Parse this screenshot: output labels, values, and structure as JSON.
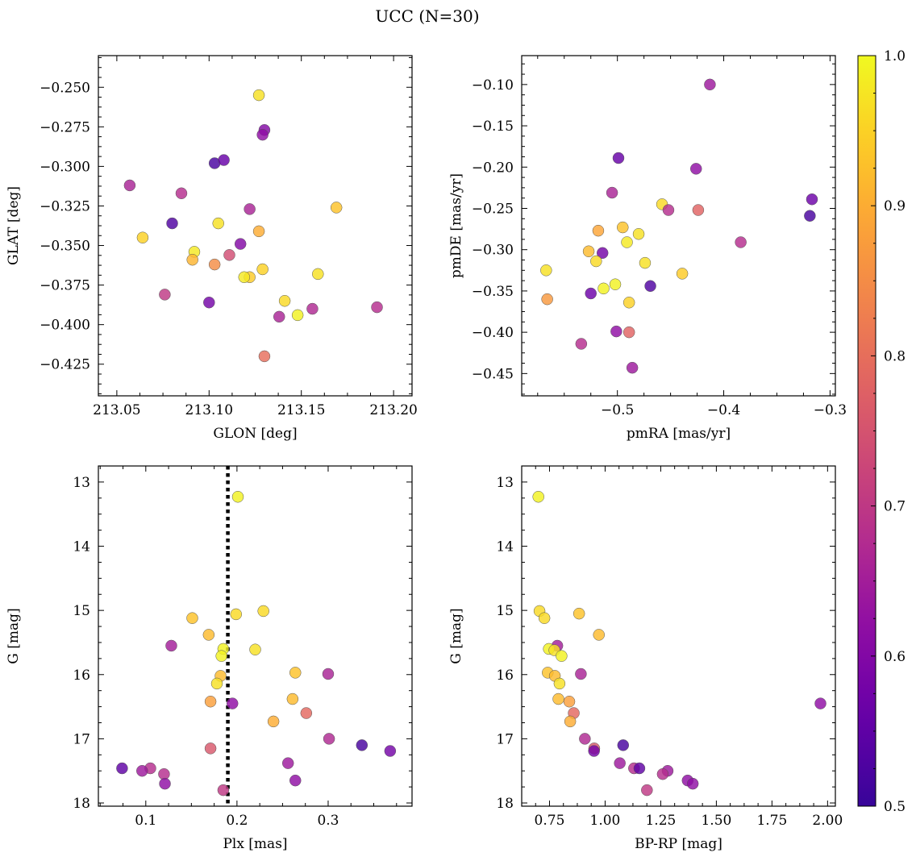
{
  "figure": {
    "title": "UCC (N=30)",
    "colorbar": {
      "colormap": "plasma",
      "range": [
        0.5,
        1.0
      ],
      "ticks": [
        0.5,
        0.6,
        0.7,
        0.8,
        0.9,
        1.0
      ],
      "tick_labels": [
        "0.5",
        "0.6",
        "0.7",
        "0.8",
        "0.9",
        "1.0"
      ]
    }
  },
  "chart_data": [
    {
      "type": "scatter",
      "panel": "top-left",
      "xlabel": "GLON [deg]",
      "ylabel": "GLAT [deg]",
      "xlim": [
        213.04,
        213.21
      ],
      "ylim": [
        -0.445,
        -0.23
      ],
      "y_inverted": false,
      "xticks": [
        213.05,
        213.1,
        213.15,
        213.2
      ],
      "xtick_labels": [
        "213.05",
        "213.10",
        "213.15",
        "213.20"
      ],
      "yticks": [
        -0.25,
        -0.275,
        -0.3,
        -0.325,
        -0.35,
        -0.375,
        -0.4,
        -0.425
      ],
      "ytick_labels": [
        "−0.250",
        "−0.275",
        "−0.300",
        "−0.325",
        "−0.350",
        "−0.375",
        "−0.400",
        "−0.425"
      ],
      "points": [
        {
          "x": 213.127,
          "y": -0.255,
          "c": 0.97
        },
        {
          "x": 213.13,
          "y": -0.277,
          "c": 0.6
        },
        {
          "x": 213.129,
          "y": -0.28,
          "c": 0.62
        },
        {
          "x": 213.103,
          "y": -0.298,
          "c": 0.52
        },
        {
          "x": 213.108,
          "y": -0.296,
          "c": 0.56
        },
        {
          "x": 213.057,
          "y": -0.312,
          "c": 0.66
        },
        {
          "x": 213.085,
          "y": -0.317,
          "c": 0.68
        },
        {
          "x": 213.08,
          "y": -0.336,
          "c": 0.53
        },
        {
          "x": 213.105,
          "y": -0.336,
          "c": 0.97
        },
        {
          "x": 213.122,
          "y": -0.327,
          "c": 0.66
        },
        {
          "x": 213.169,
          "y": -0.326,
          "c": 0.93
        },
        {
          "x": 213.064,
          "y": -0.345,
          "c": 0.95
        },
        {
          "x": 213.127,
          "y": -0.341,
          "c": 0.9
        },
        {
          "x": 213.117,
          "y": -0.349,
          "c": 0.6
        },
        {
          "x": 213.092,
          "y": -0.354,
          "c": 0.98
        },
        {
          "x": 213.091,
          "y": -0.359,
          "c": 0.91
        },
        {
          "x": 213.111,
          "y": -0.356,
          "c": 0.74
        },
        {
          "x": 213.103,
          "y": -0.362,
          "c": 0.85
        },
        {
          "x": 213.129,
          "y": -0.365,
          "c": 0.95
        },
        {
          "x": 213.122,
          "y": -0.37,
          "c": 0.94
        },
        {
          "x": 213.119,
          "y": -0.37,
          "c": 0.98
        },
        {
          "x": 213.159,
          "y": -0.368,
          "c": 0.97
        },
        {
          "x": 213.076,
          "y": -0.381,
          "c": 0.7
        },
        {
          "x": 213.1,
          "y": -0.386,
          "c": 0.58
        },
        {
          "x": 213.141,
          "y": -0.385,
          "c": 0.96
        },
        {
          "x": 213.156,
          "y": -0.39,
          "c": 0.67
        },
        {
          "x": 213.191,
          "y": -0.389,
          "c": 0.68
        },
        {
          "x": 213.138,
          "y": -0.395,
          "c": 0.66
        },
        {
          "x": 213.148,
          "y": -0.394,
          "c": 0.99
        },
        {
          "x": 213.13,
          "y": -0.42,
          "c": 0.8
        }
      ]
    },
    {
      "type": "scatter",
      "panel": "top-right",
      "xlabel": "pmRA [mas/yr]",
      "ylabel": "pmDE [mas/yr]",
      "xlim": [
        -0.59,
        -0.295
      ],
      "ylim": [
        -0.477,
        -0.065
      ],
      "y_inverted": false,
      "xticks": [
        -0.5,
        -0.4,
        -0.3
      ],
      "xtick_labels": [
        "−0.5",
        "−0.4",
        "−0.3"
      ],
      "yticks": [
        -0.1,
        -0.15,
        -0.2,
        -0.25,
        -0.3,
        -0.35,
        -0.4,
        -0.45
      ],
      "ytick_labels": [
        "−0.10",
        "−0.15",
        "−0.20",
        "−0.25",
        "−0.30",
        "−0.35",
        "−0.40",
        "−0.45"
      ],
      "points": [
        {
          "x": -0.413,
          "y": -0.1,
          "c": 0.64
        },
        {
          "x": -0.499,
          "y": -0.189,
          "c": 0.56
        },
        {
          "x": -0.426,
          "y": -0.202,
          "c": 0.62
        },
        {
          "x": -0.505,
          "y": -0.231,
          "c": 0.66
        },
        {
          "x": -0.317,
          "y": -0.239,
          "c": 0.57
        },
        {
          "x": -0.319,
          "y": -0.259,
          "c": 0.52
        },
        {
          "x": -0.458,
          "y": -0.245,
          "c": 0.96
        },
        {
          "x": -0.452,
          "y": -0.252,
          "c": 0.68
        },
        {
          "x": -0.424,
          "y": -0.252,
          "c": 0.78
        },
        {
          "x": -0.495,
          "y": -0.273,
          "c": 0.93
        },
        {
          "x": -0.518,
          "y": -0.277,
          "c": 0.89
        },
        {
          "x": -0.48,
          "y": -0.281,
          "c": 0.97
        },
        {
          "x": -0.491,
          "y": -0.291,
          "c": 0.98
        },
        {
          "x": -0.384,
          "y": -0.291,
          "c": 0.68
        },
        {
          "x": -0.527,
          "y": -0.302,
          "c": 0.92
        },
        {
          "x": -0.514,
          "y": -0.304,
          "c": 0.58
        },
        {
          "x": -0.52,
          "y": -0.314,
          "c": 0.96
        },
        {
          "x": -0.474,
          "y": -0.316,
          "c": 0.97
        },
        {
          "x": -0.567,
          "y": -0.325,
          "c": 0.97
        },
        {
          "x": -0.439,
          "y": -0.329,
          "c": 0.94
        },
        {
          "x": -0.502,
          "y": -0.342,
          "c": 0.99
        },
        {
          "x": -0.469,
          "y": -0.344,
          "c": 0.53
        },
        {
          "x": -0.513,
          "y": -0.347,
          "c": 0.99
        },
        {
          "x": -0.525,
          "y": -0.353,
          "c": 0.57
        },
        {
          "x": -0.566,
          "y": -0.36,
          "c": 0.87
        },
        {
          "x": -0.489,
          "y": -0.364,
          "c": 0.95
        },
        {
          "x": -0.501,
          "y": -0.399,
          "c": 0.62
        },
        {
          "x": -0.489,
          "y": -0.4,
          "c": 0.78
        },
        {
          "x": -0.534,
          "y": -0.414,
          "c": 0.68
        },
        {
          "x": -0.486,
          "y": -0.443,
          "c": 0.64
        }
      ]
    },
    {
      "type": "scatter",
      "panel": "bottom-left",
      "xlabel": "Plx [mas]",
      "ylabel": "G [mag]",
      "xlim": [
        0.048,
        0.392
      ],
      "ylim": [
        12.75,
        18.05
      ],
      "y_inverted": true,
      "xticks": [
        0.1,
        0.2,
        0.3
      ],
      "xtick_labels": [
        "0.1",
        "0.2",
        "0.3"
      ],
      "yticks": [
        13,
        14,
        15,
        16,
        17,
        18
      ],
      "ytick_labels": [
        "13",
        "14",
        "15",
        "16",
        "17",
        "18"
      ],
      "vline": {
        "x": 0.19,
        "style": "dotted"
      },
      "points": [
        {
          "x": 0.201,
          "y": 13.23,
          "c": 0.99
        },
        {
          "x": 0.229,
          "y": 15.01,
          "c": 0.96
        },
        {
          "x": 0.199,
          "y": 15.06,
          "c": 0.96
        },
        {
          "x": 0.151,
          "y": 15.12,
          "c": 0.93
        },
        {
          "x": 0.169,
          "y": 15.38,
          "c": 0.92
        },
        {
          "x": 0.128,
          "y": 15.55,
          "c": 0.65
        },
        {
          "x": 0.185,
          "y": 15.6,
          "c": 0.99
        },
        {
          "x": 0.22,
          "y": 15.61,
          "c": 0.97
        },
        {
          "x": 0.183,
          "y": 15.71,
          "c": 0.99
        },
        {
          "x": 0.264,
          "y": 15.97,
          "c": 0.93
        },
        {
          "x": 0.3,
          "y": 15.99,
          "c": 0.66
        },
        {
          "x": 0.182,
          "y": 16.02,
          "c": 0.92
        },
        {
          "x": 0.178,
          "y": 16.14,
          "c": 0.97
        },
        {
          "x": 0.261,
          "y": 16.38,
          "c": 0.92
        },
        {
          "x": 0.171,
          "y": 16.42,
          "c": 0.88
        },
        {
          "x": 0.195,
          "y": 16.45,
          "c": 0.62
        },
        {
          "x": 0.276,
          "y": 16.6,
          "c": 0.79
        },
        {
          "x": 0.24,
          "y": 16.73,
          "c": 0.9
        },
        {
          "x": 0.301,
          "y": 17.0,
          "c": 0.67
        },
        {
          "x": 0.337,
          "y": 17.1,
          "c": 0.52
        },
        {
          "x": 0.171,
          "y": 17.15,
          "c": 0.76
        },
        {
          "x": 0.368,
          "y": 17.19,
          "c": 0.58
        },
        {
          "x": 0.256,
          "y": 17.38,
          "c": 0.64
        },
        {
          "x": 0.074,
          "y": 17.46,
          "c": 0.55
        },
        {
          "x": 0.105,
          "y": 17.46,
          "c": 0.68
        },
        {
          "x": 0.096,
          "y": 17.5,
          "c": 0.64
        },
        {
          "x": 0.12,
          "y": 17.55,
          "c": 0.68
        },
        {
          "x": 0.264,
          "y": 17.65,
          "c": 0.62
        },
        {
          "x": 0.121,
          "y": 17.7,
          "c": 0.62
        },
        {
          "x": 0.185,
          "y": 17.8,
          "c": 0.7
        }
      ]
    },
    {
      "type": "scatter",
      "panel": "bottom-right",
      "xlabel": "BP-RP [mag]",
      "ylabel": "G [mag]",
      "xlim": [
        0.625,
        2.035
      ],
      "ylim": [
        12.75,
        18.05
      ],
      "y_inverted": true,
      "xticks": [
        0.75,
        1.0,
        1.25,
        1.5,
        1.75,
        2.0
      ],
      "xtick_labels": [
        "0.75",
        "1.00",
        "1.25",
        "1.50",
        "1.75",
        "2.00"
      ],
      "yticks": [
        13,
        14,
        15,
        16,
        17,
        18
      ],
      "ytick_labels": [
        "13",
        "14",
        "15",
        "16",
        "17",
        "18"
      ],
      "points": [
        {
          "x": 0.7,
          "y": 13.23,
          "c": 0.99
        },
        {
          "x": 0.705,
          "y": 15.01,
          "c": 0.96
        },
        {
          "x": 0.883,
          "y": 15.05,
          "c": 0.93
        },
        {
          "x": 0.727,
          "y": 15.12,
          "c": 0.96
        },
        {
          "x": 0.972,
          "y": 15.38,
          "c": 0.92
        },
        {
          "x": 0.785,
          "y": 15.55,
          "c": 0.65
        },
        {
          "x": 0.747,
          "y": 15.6,
          "c": 0.99
        },
        {
          "x": 0.772,
          "y": 15.62,
          "c": 0.97
        },
        {
          "x": 0.804,
          "y": 15.71,
          "c": 0.99
        },
        {
          "x": 0.742,
          "y": 15.97,
          "c": 0.93
        },
        {
          "x": 0.774,
          "y": 16.02,
          "c": 0.92
        },
        {
          "x": 0.891,
          "y": 15.99,
          "c": 0.66
        },
        {
          "x": 0.795,
          "y": 16.14,
          "c": 0.97
        },
        {
          "x": 0.79,
          "y": 16.38,
          "c": 0.92
        },
        {
          "x": 0.839,
          "y": 16.42,
          "c": 0.88
        },
        {
          "x": 0.859,
          "y": 16.6,
          "c": 0.79
        },
        {
          "x": 0.843,
          "y": 16.73,
          "c": 0.9
        },
        {
          "x": 1.968,
          "y": 16.45,
          "c": 0.62
        },
        {
          "x": 0.909,
          "y": 17.0,
          "c": 0.67
        },
        {
          "x": 1.081,
          "y": 17.1,
          "c": 0.52
        },
        {
          "x": 0.951,
          "y": 17.15,
          "c": 0.76
        },
        {
          "x": 0.95,
          "y": 17.19,
          "c": 0.58
        },
        {
          "x": 1.066,
          "y": 17.38,
          "c": 0.64
        },
        {
          "x": 1.13,
          "y": 17.46,
          "c": 0.68
        },
        {
          "x": 1.154,
          "y": 17.46,
          "c": 0.55
        },
        {
          "x": 1.281,
          "y": 17.5,
          "c": 0.64
        },
        {
          "x": 1.259,
          "y": 17.55,
          "c": 0.68
        },
        {
          "x": 1.371,
          "y": 17.65,
          "c": 0.62
        },
        {
          "x": 1.394,
          "y": 17.7,
          "c": 0.62
        },
        {
          "x": 1.188,
          "y": 17.8,
          "c": 0.7
        }
      ]
    }
  ]
}
